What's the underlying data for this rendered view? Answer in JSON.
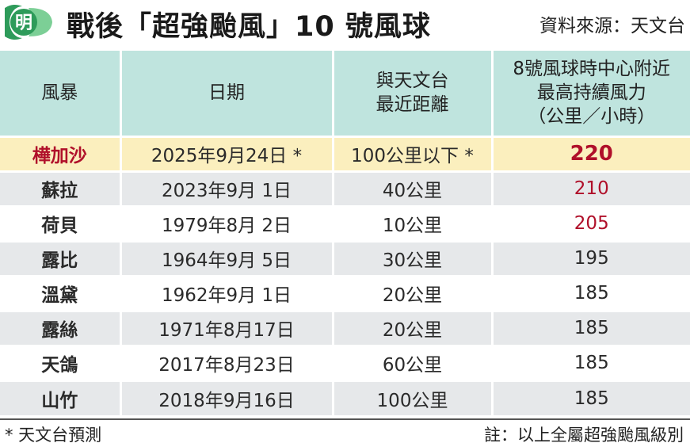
{
  "header": {
    "logo_char": "明",
    "title": "戰後「超強颱風」10 號風球",
    "source": "資料來源：天文台"
  },
  "colors": {
    "header_teal": "#bfe4de",
    "highlight_yellow": "#fbefbe",
    "accent_red": "#b0102a",
    "logo_green": "#2e9b5a"
  },
  "table": {
    "columns": [
      "風暴",
      "日期",
      "與天文台\n最近距離",
      "8號風球時中心附近\n最高持續風力\n（公里／小時）"
    ],
    "rows": [
      {
        "name": "樺加沙",
        "date": "2025年9月24日 *",
        "distance": "100公里以下 *",
        "wind": "220"
      },
      {
        "name": "蘇拉",
        "date": "2023年9月  1日",
        "distance": "40公里",
        "wind": "210"
      },
      {
        "name": "荷貝",
        "date": "1979年8月  2日",
        "distance": "10公里",
        "wind": "205"
      },
      {
        "name": "露比",
        "date": "1964年9月  5日",
        "distance": "30公里",
        "wind": "195"
      },
      {
        "name": "溫黛",
        "date": "1962年9月  1日",
        "distance": "20公里",
        "wind": "185"
      },
      {
        "name": "露絲",
        "date": "1971年8月17日",
        "distance": "20公里",
        "wind": "185"
      },
      {
        "name": "天鴿",
        "date": "2017年8月23日",
        "distance": "60公里",
        "wind": "185"
      },
      {
        "name": "山竹",
        "date": "2018年9月16日",
        "distance": "100公里",
        "wind": "185"
      }
    ]
  },
  "footer": {
    "note_left": "* 天文台預測",
    "note_right": "註：以上全屬超強颱風級別"
  }
}
